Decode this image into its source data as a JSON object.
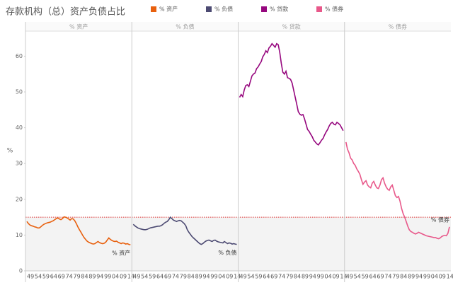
{
  "chart_data": {
    "type": "line",
    "facet": true,
    "title": "存款机构（总）资产负债占比",
    "y_label": "%",
    "categories": [
      "49",
      null,
      null,
      null,
      null,
      "54",
      null,
      null,
      null,
      null,
      "59",
      null,
      null,
      null,
      null,
      "64",
      null,
      null,
      null,
      null,
      "69",
      null,
      null,
      null,
      null,
      "74",
      null,
      null,
      null,
      null,
      "79",
      null,
      null,
      null,
      null,
      "84",
      null,
      null,
      null,
      null,
      "89",
      null,
      null,
      null,
      null,
      "94",
      null,
      null,
      null,
      null,
      "99",
      null,
      null,
      null,
      null,
      "04",
      null,
      null,
      null,
      null,
      "09",
      null,
      null,
      null,
      null,
      "14",
      null,
      null
    ],
    "ylim": [
      0,
      67
    ],
    "yticks": [
      0,
      10,
      20,
      30,
      40,
      50,
      60
    ],
    "reference_line": 15,
    "series": [
      {
        "name": "% 资产",
        "color": "#e8600e",
        "end_label": true,
        "values": [
          13.8,
          13.2,
          12.8,
          12.6,
          12.5,
          12.3,
          12.2,
          12.0,
          12.0,
          12.3,
          12.7,
          13.0,
          13.2,
          13.4,
          13.5,
          13.6,
          13.8,
          14.0,
          14.3,
          14.6,
          14.8,
          14.5,
          14.3,
          14.6,
          15.1,
          15.0,
          14.8,
          14.5,
          14.2,
          14.6,
          14.5,
          14.0,
          13.2,
          12.3,
          11.5,
          10.8,
          10.0,
          9.3,
          8.8,
          8.3,
          8.0,
          7.8,
          7.6,
          7.5,
          7.6,
          7.9,
          8.2,
          7.9,
          7.7,
          7.6,
          7.7,
          8.0,
          8.6,
          9.2,
          8.8,
          8.5,
          8.3,
          8.2,
          8.3,
          8.0,
          7.8,
          7.6,
          7.8,
          7.7,
          7.5,
          7.6,
          7.4,
          7.3
        ]
      },
      {
        "name": "% 负债",
        "color": "#4c4a72",
        "end_label": true,
        "values": [
          13.0,
          12.6,
          12.3,
          12.0,
          11.8,
          11.7,
          11.6,
          11.5,
          11.5,
          11.6,
          11.8,
          12.0,
          12.1,
          12.2,
          12.3,
          12.4,
          12.5,
          12.5,
          12.6,
          12.9,
          13.3,
          13.6,
          13.8,
          14.3,
          15.0,
          14.6,
          14.2,
          14.0,
          13.8,
          14.0,
          14.1,
          14.0,
          13.6,
          13.2,
          12.6,
          11.5,
          10.8,
          10.2,
          9.6,
          9.2,
          8.8,
          8.4,
          8.0,
          7.6,
          7.4,
          7.6,
          8.0,
          8.3,
          8.5,
          8.6,
          8.4,
          8.2,
          8.5,
          8.6,
          8.3,
          8.1,
          8.0,
          7.9,
          7.8,
          8.2,
          7.9,
          7.6,
          7.8,
          7.7,
          7.5,
          7.6,
          7.5,
          7.4
        ]
      },
      {
        "name": "% 贷款",
        "color": "#96077e",
        "end_label": false,
        "values": [
          48.5,
          49.3,
          48.7,
          50.5,
          51.8,
          52.0,
          51.5,
          53.0,
          54.5,
          55.0,
          55.3,
          56.5,
          57.0,
          57.8,
          58.5,
          59.8,
          60.5,
          61.5,
          61.0,
          62.3,
          62.8,
          63.5,
          63.0,
          62.5,
          63.5,
          63.2,
          61.0,
          58.0,
          55.5,
          55.0,
          55.8,
          54.0,
          53.8,
          53.5,
          52.5,
          50.5,
          48.5,
          46.5,
          44.5,
          43.8,
          43.5,
          43.7,
          42.5,
          41.0,
          39.5,
          39.0,
          38.2,
          37.5,
          36.5,
          36.0,
          35.5,
          35.2,
          35.8,
          36.5,
          37.0,
          38.0,
          38.8,
          39.5,
          40.5,
          41.2,
          41.5,
          41.0,
          40.8,
          41.5,
          41.2,
          40.8,
          40.0,
          39.2
        ]
      },
      {
        "name": "% 债券",
        "color": "#e8588a",
        "end_label": true,
        "values": [
          36.0,
          34.0,
          33.0,
          31.5,
          31.0,
          30.0,
          29.5,
          28.5,
          27.8,
          27.0,
          25.5,
          24.2,
          24.8,
          25.2,
          24.0,
          23.5,
          23.2,
          24.5,
          25.0,
          24.0,
          23.2,
          23.0,
          24.0,
          25.5,
          26.0,
          24.5,
          23.5,
          22.8,
          22.5,
          23.5,
          24.0,
          22.5,
          21.0,
          20.5,
          20.8,
          19.5,
          17.5,
          16.0,
          15.0,
          13.8,
          12.5,
          11.5,
          11.0,
          10.8,
          10.5,
          10.3,
          10.5,
          10.8,
          10.6,
          10.4,
          10.2,
          10.0,
          9.8,
          9.7,
          9.6,
          9.5,
          9.4,
          9.3,
          9.3,
          9.1,
          9.0,
          9.2,
          9.6,
          9.8,
          9.9,
          9.8,
          10.5,
          12.3
        ]
      }
    ]
  }
}
